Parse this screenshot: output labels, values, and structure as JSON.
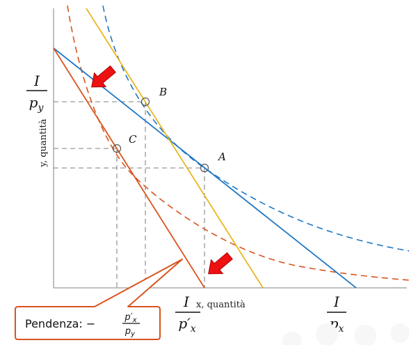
{
  "axes": {
    "x_label": "x, quantità",
    "y_label": "y, quantità"
  },
  "intercepts": {
    "y_num": "I",
    "y_den": "p",
    "y_den_sub": "y",
    "x_new_num": "I",
    "x_new_den": "p′",
    "x_new_den_sub": "x",
    "x_num": "I",
    "x_den": "p",
    "x_den_sub": "x"
  },
  "points": {
    "a": "A",
    "b": "B",
    "c": "C"
  },
  "callout": {
    "prefix": "Pendenza: −",
    "frac_num": "p′",
    "frac_num_sub": "x",
    "frac_den": "p",
    "frac_den_sub": "y"
  },
  "colors": {
    "blue": "#1f77c4",
    "orange": "#d9541e",
    "yellow": "#eab520",
    "axis": "#808080",
    "guide": "#555555",
    "arrow": "#ee1111"
  }
}
